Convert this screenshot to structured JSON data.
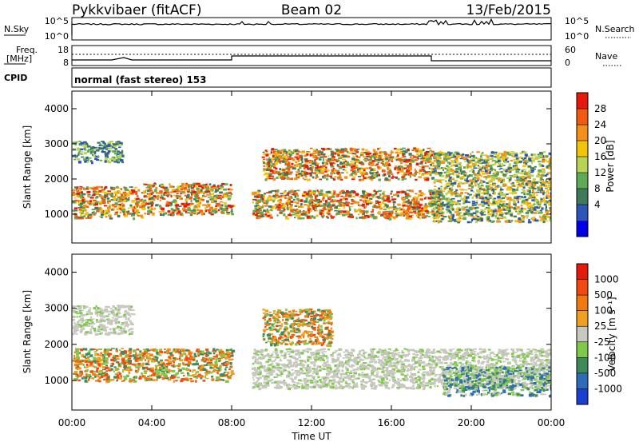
{
  "header": {
    "station": "Pykkvibaer (fitACF)",
    "beam": "Beam 02",
    "date": "13/Feb/2015"
  },
  "params": {
    "nsky_label": "N.Sky",
    "nsky_ticks": [
      "10^5",
      "10^0"
    ],
    "nsearch_label": "N.Search",
    "nsearch_ticks": [
      "10^5",
      "10^0"
    ],
    "freq_label_1": "Freq.",
    "freq_label_2": "[MHz]",
    "freq_ticks": [
      "18",
      "8"
    ],
    "nave_label": "Nave",
    "nave_ticks": [
      "60",
      "0"
    ],
    "cpid_label": "CPID",
    "cpid_text": "normal (fast stereo) 153"
  },
  "chart_data": [
    {
      "type": "heatmap",
      "name": "power",
      "ylabel": "Slant Range [km]",
      "ylim": [
        180,
        4500
      ],
      "yticks": [
        "4000",
        "3000",
        "2000",
        "1000"
      ],
      "colorbar": {
        "label": "Power [dB]",
        "ticks": [
          "28",
          "24",
          "20",
          "16",
          "12",
          "8",
          "4"
        ],
        "colors": [
          "#0000e6",
          "#2d55b5",
          "#3f7a5a",
          "#5faa55",
          "#b8d454",
          "#f2c40a",
          "#f39018",
          "#f25a10",
          "#e61a0a"
        ]
      },
      "regions": [
        {
          "t0": 0.0,
          "t1": 3.5,
          "r0": 900,
          "r1": 1800,
          "level": "high"
        },
        {
          "t0": 0.0,
          "t1": 2.5,
          "r0": 2500,
          "r1": 3100,
          "level": "low"
        },
        {
          "t0": 3.5,
          "t1": 8.0,
          "r0": 1000,
          "r1": 1900,
          "level": "high"
        },
        {
          "t0": 9.5,
          "t1": 18.0,
          "r0": 2000,
          "r1": 2900,
          "level": "high"
        },
        {
          "t0": 9.0,
          "t1": 18.5,
          "r0": 900,
          "r1": 1700,
          "level": "high"
        },
        {
          "t0": 18.0,
          "t1": 24.0,
          "r0": 800,
          "r1": 2800,
          "level": "medium"
        }
      ]
    },
    {
      "type": "heatmap",
      "name": "velocity",
      "ylabel": "Slant Range [km]",
      "xlabel": "Time UT",
      "ylim": [
        180,
        4500
      ],
      "xlim": [
        "00:00",
        "24:00"
      ],
      "yticks": [
        "4000",
        "3000",
        "2000",
        "1000"
      ],
      "xticks": [
        "00:00",
        "04:00",
        "08:00",
        "12:00",
        "16:00",
        "20:00",
        "00:00"
      ],
      "colorbar": {
        "label": "Velocity [m s⁻¹]",
        "ticks": [
          "1000",
          "500",
          "100",
          "25",
          "-25",
          "-100",
          "-500",
          "-1000"
        ],
        "colors": [
          "#1a3fd0",
          "#2d6db5",
          "#3f8a5a",
          "#7ec84a",
          "#c8c8c0",
          "#f0a020",
          "#f07a10",
          "#f04a10",
          "#e61a0a"
        ]
      },
      "regions": [
        {
          "t0": 0.0,
          "t1": 3.0,
          "r0": 2300,
          "r1": 3100,
          "level": "ground"
        },
        {
          "t0": 0.0,
          "t1": 8.0,
          "r0": 1000,
          "r1": 1900,
          "level": "away"
        },
        {
          "t0": 9.5,
          "t1": 13.0,
          "r0": 2000,
          "r1": 3000,
          "level": "away"
        },
        {
          "t0": 9.0,
          "t1": 24.0,
          "r0": 800,
          "r1": 1900,
          "level": "ground"
        },
        {
          "t0": 18.5,
          "t1": 24.0,
          "r0": 600,
          "r1": 1400,
          "level": "toward"
        }
      ]
    }
  ]
}
